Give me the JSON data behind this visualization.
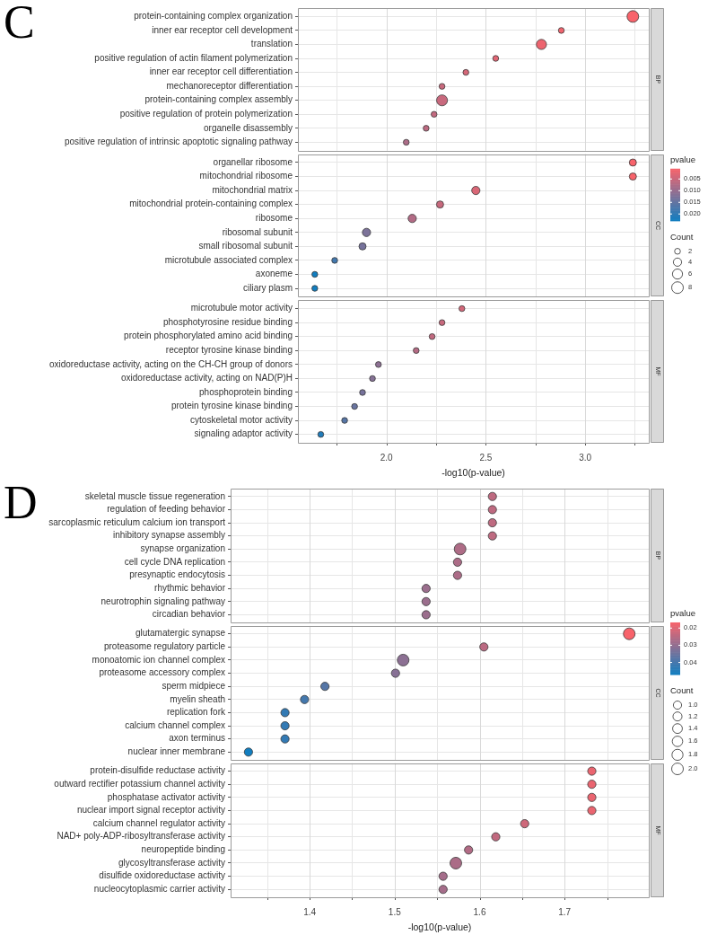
{
  "chart_data": [
    {
      "type": "bubble",
      "orientation": "horizontal",
      "title": "C",
      "xlabel": "-log10(p-value)",
      "clabel": "pvalue",
      "legend_title": "Count",
      "marker": "circle",
      "grid": true,
      "categories": [
        "protein-containing complex organization",
        "inner ear receptor cell development",
        "translation",
        "positive regulation of actin filament polymerization",
        "inner ear receptor cell differentiation",
        "mechanoreceptor differentiation",
        "protein-containing complex assembly",
        "positive regulation of protein polymerization",
        "organelle disassembly",
        "positive regulation of intrinsic apoptotic signaling pathway",
        "organellar ribosome",
        "mitochondrial ribosome",
        "mitochondrial matrix",
        "mitochondrial protein-containing complex",
        "ribosome",
        "ribosomal subunit",
        "small ribosomal subunit",
        "microtubule associated complex",
        "axoneme",
        "ciliary plasm",
        "microtubule motor activity",
        "phosphotyrosine residue binding",
        "protein phosphorylated amino acid binding",
        "receptor tyrosine kinase binding",
        "oxidoreductase activity, acting on the CH-CH group of donors",
        "oxidoreductase activity, acting on NAD(P)H",
        "phosphoprotein binding",
        "protein tyrosine kinase binding",
        "cytoskeletal motor activity",
        "signaling adaptor activity"
      ],
      "series": [
        {
          "name": "BP",
          "colors": [
            "#f8636b",
            "#f0646e",
            "#ed646f",
            "#e16674",
            "#d56778",
            "#c8697d",
            "#c8697d",
            "#c3697f",
            "#bd6a81",
            "#ac6c87",
            null,
            null,
            null,
            null,
            null,
            null,
            null,
            null,
            null,
            null,
            null,
            null,
            null,
            null,
            null,
            null,
            null,
            null,
            null,
            null
          ],
          "values": [
            3.24,
            2.88,
            2.78,
            2.55,
            2.4,
            2.28,
            2.28,
            2.24,
            2.2,
            2.1,
            null,
            null,
            null,
            null,
            null,
            null,
            null,
            null,
            null,
            null,
            null,
            null,
            null,
            null,
            null,
            null,
            null,
            null,
            null,
            null
          ],
          "sizes": [
            8,
            2,
            6,
            2,
            2,
            2,
            7,
            2,
            2,
            2,
            null,
            null,
            null,
            null,
            null,
            null,
            null,
            null,
            null,
            null,
            null,
            null,
            null,
            null,
            null,
            null,
            null,
            null,
            null,
            null
          ]
        },
        {
          "name": "CC",
          "colors": [
            null,
            null,
            null,
            null,
            null,
            null,
            null,
            null,
            null,
            null,
            "#f8636b",
            "#f8636b",
            "#d96776",
            "#c7697d",
            "#b26b85",
            "#7c7299",
            "#76729b",
            "#4278ae",
            "#127ec0",
            "#127ec0",
            null,
            null,
            null,
            null,
            null,
            null,
            null,
            null,
            null,
            null
          ],
          "values": [
            null,
            null,
            null,
            null,
            null,
            null,
            null,
            null,
            null,
            null,
            3.24,
            3.24,
            2.45,
            2.27,
            2.13,
            1.9,
            1.88,
            1.74,
            1.64,
            1.64,
            null,
            null,
            null,
            null,
            null,
            null,
            null,
            null,
            null,
            null
          ],
          "sizes": [
            null,
            null,
            null,
            null,
            null,
            null,
            null,
            null,
            null,
            null,
            3,
            3,
            4,
            3,
            4,
            4,
            3,
            2,
            2,
            2,
            null,
            null,
            null,
            null,
            null,
            null,
            null,
            null,
            null,
            null
          ]
        },
        {
          "name": "MF",
          "colors": [
            null,
            null,
            null,
            null,
            null,
            null,
            null,
            null,
            null,
            null,
            null,
            null,
            null,
            null,
            null,
            null,
            null,
            null,
            null,
            null,
            "#d36779",
            "#c8697d",
            "#c1697f",
            "#b56b84",
            "#8d7093",
            "#857195",
            "#76729b",
            "#6974a0",
            "#5776a6",
            "#217cba"
          ],
          "values": [
            null,
            null,
            null,
            null,
            null,
            null,
            null,
            null,
            null,
            null,
            null,
            null,
            null,
            null,
            null,
            null,
            null,
            null,
            null,
            null,
            2.38,
            2.28,
            2.23,
            2.15,
            1.96,
            1.93,
            1.88,
            1.84,
            1.79,
            1.67
          ],
          "sizes": [
            null,
            null,
            null,
            null,
            null,
            null,
            null,
            null,
            null,
            null,
            null,
            null,
            null,
            null,
            null,
            null,
            null,
            null,
            null,
            null,
            2,
            2,
            2,
            2,
            2,
            2,
            2,
            2,
            2,
            2
          ]
        }
      ],
      "clim": [
        0.000575,
        0.0229
      ],
      "cticks": [
        {
          "value": 0.005,
          "label": "0.005"
        },
        {
          "value": 0.01,
          "label": "0.010"
        },
        {
          "value": 0.015,
          "label": "0.015"
        },
        {
          "value": 0.02,
          "label": "0.020"
        }
      ],
      "size_legend": [
        2,
        4,
        6,
        8
      ],
      "xlim": [
        1.555,
        3.32
      ],
      "xticks": [
        {
          "value": 1.75,
          "label": null
        },
        {
          "value": 2,
          "label": "2.0"
        },
        {
          "value": 2.25,
          "label": null
        },
        {
          "value": 2.5,
          "label": "2.5"
        },
        {
          "value": 2.75,
          "label": null
        },
        {
          "value": 3,
          "label": "3.0"
        },
        {
          "value": 3.25,
          "label": null
        }
      ]
    },
    {
      "type": "bubble",
      "orientation": "horizontal",
      "title": "D",
      "xlabel": "-log10(p-value)",
      "clabel": "pvalue",
      "legend_title": "Count",
      "marker": "circle",
      "grid": true,
      "categories": [
        "skeletal muscle tissue regeneration",
        "regulation of feeding behavior",
        "sarcoplasmic reticulum calcium ion transport",
        "inhibitory synapse assembly",
        "synapse organization",
        "cell cycle DNA replication",
        "presynaptic endocytosis",
        "rhythmic behavior",
        "neurotrophin signaling pathway",
        "circadian behavior",
        "glutamatergic synapse",
        "proteasome regulatory particle",
        "monoatomic ion channel complex",
        "proteasome accessory complex",
        "sperm midpiece",
        "myelin sheath",
        "replication fork",
        "calcium channel complex",
        "axon terminus",
        "nuclear inner membrane",
        "protein-disulfide reductase activity",
        "outward rectifier potassium channel activity",
        "phosphatase activator activity",
        "nuclear import signal receptor activity",
        "calcium channel regulator activity",
        "NAD+ poly-ADP-ribosyltransferase activity",
        "neuropeptide binding",
        "glycosyltransferase activity",
        "disulfide oxidoreductase activity",
        "nucleocytoplasmic carrier activity"
      ],
      "series": [
        {
          "name": "BP",
          "colors": [
            "#be6a80",
            "#be6a80",
            "#be6a80",
            "#be6a80",
            "#ae6c86",
            "#ac6c87",
            "#ac6c87",
            "#9b6e8d",
            "#9b6e8d",
            "#9b6e8d",
            null,
            null,
            null,
            null,
            null,
            null,
            null,
            null,
            null,
            null,
            null,
            null,
            null,
            null,
            null,
            null,
            null,
            null,
            null,
            null
          ],
          "values": [
            1.615,
            1.615,
            1.615,
            1.615,
            1.577,
            1.574,
            1.574,
            1.537,
            1.537,
            1.537,
            null,
            null,
            null,
            null,
            null,
            null,
            null,
            null,
            null,
            null,
            null,
            null,
            null,
            null,
            null,
            null,
            null,
            null,
            null,
            null
          ],
          "sizes": [
            1,
            1,
            1,
            1,
            2,
            1,
            1,
            1,
            1,
            1,
            null,
            null,
            null,
            null,
            null,
            null,
            null,
            null,
            null,
            null,
            null,
            null,
            null,
            null,
            null,
            null,
            null,
            null,
            null,
            null
          ]
        },
        {
          "name": "CC",
          "colors": [
            null,
            null,
            null,
            null,
            null,
            null,
            null,
            null,
            null,
            null,
            "#f8636b",
            "#bb6a82",
            "#8c7093",
            "#877095",
            "#5576a7",
            "#4478ad",
            "#337ab4",
            "#337ab4",
            "#337ab4",
            "#127ec0",
            null,
            null,
            null,
            null,
            null,
            null,
            null,
            null,
            null,
            null
          ],
          "values": [
            null,
            null,
            null,
            null,
            null,
            null,
            null,
            null,
            null,
            null,
            1.776,
            1.605,
            1.51,
            1.501,
            1.418,
            1.394,
            1.371,
            1.371,
            1.371,
            1.328,
            null,
            null,
            null,
            null,
            null,
            null,
            null,
            null,
            null,
            null
          ],
          "sizes": [
            null,
            null,
            null,
            null,
            null,
            null,
            null,
            null,
            null,
            null,
            2,
            1,
            2,
            1,
            1,
            1,
            1,
            1,
            1,
            1,
            null,
            null,
            null,
            null,
            null,
            null,
            null,
            null,
            null,
            null
          ]
        },
        {
          "name": "MF",
          "colors": [
            null,
            null,
            null,
            null,
            null,
            null,
            null,
            null,
            null,
            null,
            null,
            null,
            null,
            null,
            null,
            null,
            null,
            null,
            null,
            null,
            "#ea6570",
            "#ea6570",
            "#ea6570",
            "#ea6570",
            "#ce687a",
            "#c1697f",
            "#b26b85",
            "#ab6c87",
            "#a56d8a",
            "#a56d8a"
          ],
          "values": [
            null,
            null,
            null,
            null,
            null,
            null,
            null,
            null,
            null,
            null,
            null,
            null,
            null,
            null,
            null,
            null,
            null,
            null,
            null,
            null,
            1.732,
            1.732,
            1.732,
            1.732,
            1.653,
            1.619,
            1.587,
            1.572,
            1.557,
            1.557
          ],
          "sizes": [
            null,
            null,
            null,
            null,
            null,
            null,
            null,
            null,
            null,
            null,
            null,
            null,
            null,
            null,
            null,
            null,
            null,
            null,
            null,
            null,
            1,
            1,
            1,
            1,
            1,
            1,
            1,
            2,
            1,
            1
          ]
        }
      ],
      "clim": [
        0.0167,
        0.047
      ],
      "cticks": [
        {
          "value": 0.02,
          "label": "0.02"
        },
        {
          "value": 0.03,
          "label": "0.03"
        },
        {
          "value": 0.04,
          "label": "0.04"
        }
      ],
      "size_legend": [
        {
          "value": 1,
          "label": "1.0"
        },
        {
          "value": 1.2,
          "label": "1.2"
        },
        {
          "value": 1.4,
          "label": "1.4"
        },
        {
          "value": 1.6,
          "label": "1.6"
        },
        {
          "value": 1.8,
          "label": "1.8"
        },
        {
          "value": 2,
          "label": "2.0"
        }
      ],
      "xlim": [
        1.307,
        1.799
      ],
      "xticks": [
        {
          "value": 1.35,
          "label": null
        },
        {
          "value": 1.4,
          "label": "1.4"
        },
        {
          "value": 1.45,
          "label": null
        },
        {
          "value": 1.5,
          "label": "1.5"
        },
        {
          "value": 1.55,
          "label": null
        },
        {
          "value": 1.6,
          "label": "1.6"
        },
        {
          "value": 1.65,
          "label": null
        },
        {
          "value": 1.7,
          "label": "1.7"
        },
        {
          "value": 1.75,
          "label": null
        }
      ]
    }
  ]
}
